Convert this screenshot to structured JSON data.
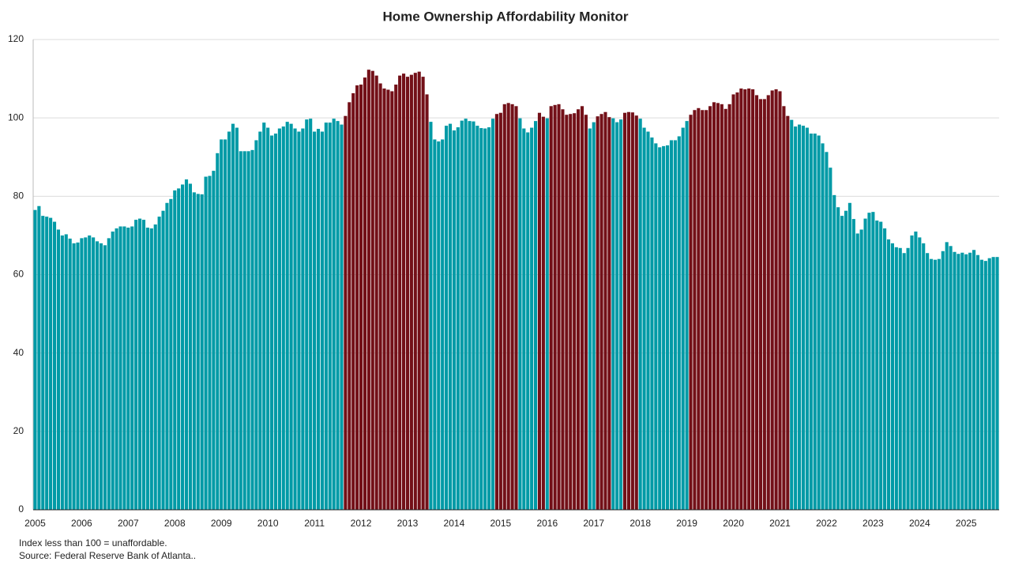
{
  "chart_data": {
    "type": "bar",
    "title": "Home Ownership Affordability Monitor",
    "notes": [
      "Index less than 100 = unaffordable.",
      "Source: Federal Reserve Bank of Atlanta.."
    ],
    "categories": [
      "2005",
      null,
      null,
      null,
      null,
      null,
      null,
      null,
      null,
      null,
      null,
      null,
      "2006",
      null,
      null,
      null,
      null,
      null,
      null,
      null,
      null,
      null,
      null,
      null,
      "2007",
      null,
      null,
      null,
      null,
      null,
      null,
      null,
      null,
      null,
      null,
      null,
      "2008",
      null,
      null,
      null,
      null,
      null,
      null,
      null,
      null,
      null,
      null,
      null,
      "2009",
      null,
      null,
      null,
      null,
      null,
      null,
      null,
      null,
      null,
      null,
      null,
      "2010",
      null,
      null,
      null,
      null,
      null,
      null,
      null,
      null,
      null,
      null,
      null,
      "2011",
      null,
      null,
      null,
      null,
      null,
      null,
      null,
      null,
      null,
      null,
      null,
      "2012",
      null,
      null,
      null,
      null,
      null,
      null,
      null,
      null,
      null,
      null,
      null,
      "2013",
      null,
      null,
      null,
      null,
      null,
      null,
      null,
      null,
      null,
      null,
      null,
      "2014",
      null,
      null,
      null,
      null,
      null,
      null,
      null,
      null,
      null,
      null,
      null,
      "2015",
      null,
      null,
      null,
      null,
      null,
      null,
      null,
      null,
      null,
      null,
      null,
      "2016",
      null,
      null,
      null,
      null,
      null,
      null,
      null,
      null,
      null,
      null,
      null,
      "2017",
      null,
      null,
      null,
      null,
      null,
      null,
      null,
      null,
      null,
      null,
      null,
      "2018",
      null,
      null,
      null,
      null,
      null,
      null,
      null,
      null,
      null,
      null,
      null,
      "2019",
      null,
      null,
      null,
      null,
      null,
      null,
      null,
      null,
      null,
      null,
      null,
      "2020",
      null,
      null,
      null,
      null,
      null,
      null,
      null,
      null,
      null,
      null,
      null,
      "2021",
      null,
      null,
      null,
      null,
      null,
      null,
      null,
      null,
      null,
      null,
      null,
      "2022",
      null,
      null,
      null,
      null,
      null,
      null,
      null,
      null,
      null,
      null,
      null,
      "2023",
      null,
      null,
      null,
      null,
      null,
      null,
      null,
      null,
      null,
      null,
      null,
      "2024",
      null,
      null,
      null,
      null,
      null,
      null,
      null,
      null,
      null,
      null,
      null,
      "2025",
      null,
      null,
      null,
      null,
      null,
      null,
      null,
      null
    ],
    "values": [
      76.5,
      77.5,
      75,
      74.8,
      74.5,
      73.5,
      71.5,
      70,
      70.3,
      69.2,
      68,
      68.2,
      69.3,
      69.5,
      70,
      69.5,
      68.5,
      68,
      67.5,
      69.3,
      71,
      71.8,
      72.3,
      72.3,
      72,
      72.3,
      74,
      74.3,
      74,
      72,
      71.8,
      72.8,
      74.8,
      76.3,
      78.3,
      79.3,
      81.5,
      82,
      83,
      84.3,
      83.2,
      81,
      80.6,
      80.5,
      85,
      85.2,
      86.5,
      91,
      94.5,
      94.5,
      96.5,
      98.5,
      97.5,
      91.5,
      91.5,
      91.5,
      91.8,
      94.3,
      96.5,
      98.8,
      97.5,
      95.5,
      96,
      97.3,
      97.8,
      99,
      98.5,
      97.3,
      96.5,
      97.3,
      99.6,
      99.8,
      96.5,
      97.2,
      96.5,
      98.8,
      98.8,
      99.8,
      99.2,
      98.3,
      100.5,
      104,
      106.3,
      108.3,
      108.5,
      110.3,
      112.3,
      112,
      110.8,
      108.8,
      107.5,
      107.2,
      106.8,
      108.5,
      110.8,
      111.3,
      110.5,
      111,
      111.5,
      111.8,
      110.5,
      106,
      99,
      94.5,
      94,
      94.5,
      98,
      98.5,
      96.8,
      97.6,
      99.3,
      99.8,
      99.2,
      99.1,
      98,
      97.4,
      97.3,
      97.6,
      99.8,
      101,
      101.3,
      103.5,
      103.8,
      103.5,
      103,
      99.9,
      97.3,
      96.3,
      97.5,
      99.2,
      101.3,
      100.3,
      99.9,
      103,
      103.3,
      103.5,
      102.2,
      100.8,
      101,
      101.2,
      102.2,
      103,
      100.8,
      97.3,
      98.9,
      100.4,
      101,
      101.5,
      100.2,
      99.9,
      98.9,
      99.6,
      101.3,
      101.5,
      101.4,
      100.6,
      99.8,
      97.5,
      96.5,
      95,
      93.5,
      92.5,
      92.8,
      93,
      94.3,
      94.3,
      95.3,
      97.5,
      99.2,
      100.8,
      102,
      102.5,
      102,
      102,
      103,
      104,
      103.8,
      103.5,
      102.3,
      103.5,
      106,
      106.5,
      107.5,
      107.3,
      107.5,
      107.3,
      105.8,
      104.8,
      104.8,
      105.8,
      107,
      107.3,
      106.8,
      103,
      100.5,
      99.5,
      97.8,
      98.3,
      98,
      97.5,
      96,
      96,
      95.5,
      93.5,
      91.3,
      87.3,
      80.3,
      77.2,
      75,
      76.3,
      78.3,
      74.2,
      70.5,
      71.5,
      74.3,
      75.8,
      76,
      73.8,
      73.5,
      71.8,
      69,
      68,
      67,
      66.8,
      65.5,
      66.8,
      70,
      71,
      69.5,
      68,
      65.5,
      64,
      63.8,
      64,
      66,
      68.3,
      67.3,
      65.8,
      65.3,
      65.6,
      65.2,
      65.6,
      66.3,
      65,
      63.8,
      63.5,
      64.2,
      64.5,
      64.5
    ],
    "color": "#009aa6",
    "above_color": "#731018",
    "threshold": 100,
    "ylim": [
      0,
      120
    ],
    "yticks": [
      0,
      20,
      40,
      60,
      80,
      100,
      120
    ],
    "grid": true
  }
}
